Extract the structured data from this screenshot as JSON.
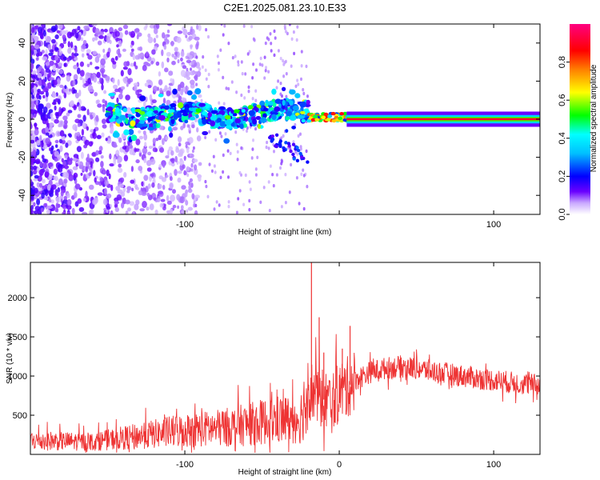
{
  "figure_title": "C2E1.2025.081.23.10.E33",
  "chart_data": [
    {
      "type": "heatmap",
      "title": "C2E1.2025.081.23.10.E33",
      "xlabel": "Height of straight line (km)",
      "ylabel": "Frequency (Hz)",
      "xlim": [
        -200,
        130
      ],
      "ylim": [
        -50,
        50
      ],
      "xticks": [
        -100,
        0,
        100
      ],
      "x_tick_labels": [
        "-100",
        "",
        "100"
      ],
      "yticks": [
        -40,
        -20,
        0,
        20,
        40
      ],
      "y_tick_labels": [
        "-40",
        "-20",
        "0",
        "20",
        "40"
      ],
      "colorbar": {
        "label": "Normalized spectral amplitude",
        "range": [
          0,
          1
        ],
        "ticks": [
          0.0,
          0.2,
          0.4,
          0.6,
          0.8
        ],
        "tick_labels": [
          "0.0",
          "0.2",
          "0.4",
          "0.6",
          "0.8"
        ],
        "colormap": [
          "#ffffff",
          "#6a00ff",
          "#0000ff",
          "#00ffff",
          "#00ff00",
          "#ffff00",
          "#ff8000",
          "#ff0000",
          "#ff0080"
        ]
      },
      "features": [
        {
          "x_range": [
            -200,
            -100
          ],
          "y_range": [
            -50,
            50
          ],
          "amplitude": 0.1
        },
        {
          "x_range": [
            -150,
            -20
          ],
          "y_center": 2,
          "y_halfwidth": 5,
          "amplitude": 0.35
        },
        {
          "x_range": [
            -20,
            10
          ],
          "y_center": 1,
          "y_halfwidth": 2,
          "amplitude": 0.7
        },
        {
          "x_range": [
            10,
            130
          ],
          "y_center": 0,
          "y_halfwidth": 1,
          "amplitude": 0.9
        }
      ],
      "grid": false
    },
    {
      "type": "line",
      "xlabel": "Height of straight line (km)",
      "ylabel": "SNR (10 * v/v)",
      "xlim": [
        -200,
        130
      ],
      "ylim": [
        0,
        2450
      ],
      "xticks": [
        -100,
        0,
        100
      ],
      "x_tick_labels": [
        "-100",
        "0",
        "100"
      ],
      "yticks": [
        500,
        1000,
        1500,
        2000
      ],
      "y_tick_labels": [
        "500",
        "1000",
        "1500",
        "2000"
      ],
      "color": "#ee3333",
      "x": [
        -200,
        -180,
        -160,
        -140,
        -120,
        -100,
        -80,
        -60,
        -40,
        -30,
        -25,
        -20,
        -15,
        -10,
        -5,
        0,
        5,
        10,
        20,
        30,
        40,
        50,
        60,
        70,
        80,
        90,
        100,
        110,
        120,
        130
      ],
      "values": [
        180,
        170,
        160,
        210,
        260,
        310,
        330,
        380,
        440,
        450,
        470,
        850,
        750,
        700,
        650,
        800,
        850,
        950,
        1050,
        1100,
        1120,
        1100,
        1060,
        1030,
        1000,
        970,
        950,
        920,
        900,
        880
      ],
      "spikes": [
        {
          "x": -18,
          "y": 2450
        },
        {
          "x": -13,
          "y": 1750
        },
        {
          "x": -10,
          "y": 1300
        },
        {
          "x": 7,
          "y": 1640
        },
        {
          "x": 2,
          "y": 1350
        }
      ],
      "grid": false
    }
  ]
}
